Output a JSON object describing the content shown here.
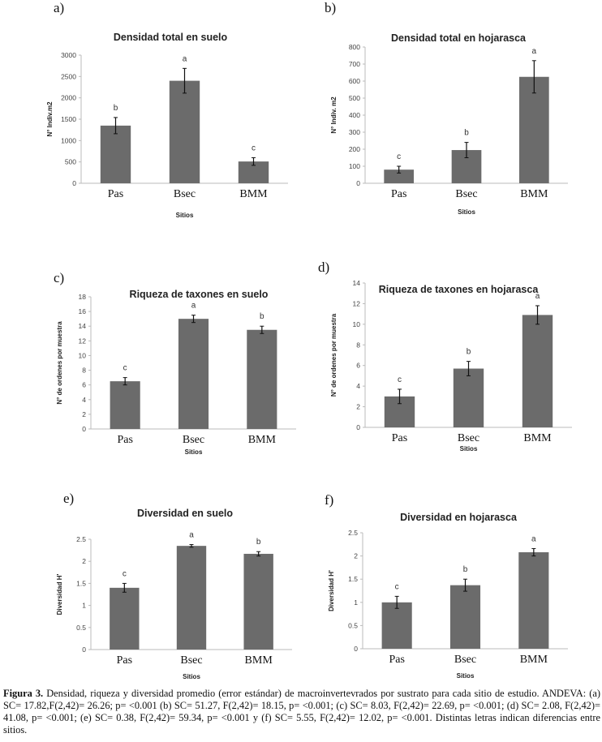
{
  "chart_data": [
    {
      "type": "bar",
      "panel": "a)",
      "title": "Densidad total en suelo",
      "xlabel": "Sitios",
      "ylabel": "N° Indiv.m2",
      "categories": [
        "Pas",
        "Bsec",
        "BMM"
      ],
      "values": [
        1350,
        2400,
        510
      ],
      "errors": [
        190,
        290,
        90
      ],
      "letters": [
        "b",
        "a",
        "c"
      ],
      "ylim": [
        0,
        3000
      ],
      "yticks": [
        0,
        500,
        1000,
        1500,
        2000,
        2500,
        3000
      ]
    },
    {
      "type": "bar",
      "panel": "b)",
      "title": "Densidad total en hojarasca",
      "xlabel": "Sitios",
      "ylabel": "N° Indiv. m2",
      "categories": [
        "Pas",
        "Bsec",
        "BMM"
      ],
      "values": [
        80,
        195,
        625
      ],
      "errors": [
        20,
        45,
        95
      ],
      "letters": [
        "c",
        "b",
        "a"
      ],
      "ylim": [
        0,
        800
      ],
      "yticks": [
        0,
        100,
        200,
        300,
        400,
        500,
        600,
        700,
        800
      ]
    },
    {
      "type": "bar",
      "panel": "c)",
      "title": "Riqueza de taxones en suelo",
      "xlabel": "Sitios",
      "ylabel": "N° de ordenes por muestra",
      "categories": [
        "Pas",
        "Bsec",
        "BMM"
      ],
      "values": [
        6.5,
        15.0,
        13.5
      ],
      "errors": [
        0.5,
        0.5,
        0.5
      ],
      "letters": [
        "c",
        "a",
        "b"
      ],
      "ylim": [
        0,
        18
      ],
      "yticks": [
        0,
        2,
        4,
        6,
        8,
        10,
        12,
        14,
        16,
        18
      ]
    },
    {
      "type": "bar",
      "panel": "d)",
      "title": "Riqueza de taxones en hojarasca",
      "xlabel": "Sitios",
      "ylabel": "N° de ordenes por muestra",
      "categories": [
        "Pas",
        "Bsec",
        "BMM"
      ],
      "values": [
        3.0,
        5.7,
        10.9
      ],
      "errors": [
        0.7,
        0.7,
        0.9
      ],
      "letters": [
        "c",
        "b",
        "a"
      ],
      "ylim": [
        0,
        14
      ],
      "yticks": [
        0,
        2,
        4,
        6,
        8,
        10,
        12,
        14
      ]
    },
    {
      "type": "bar",
      "panel": "e)",
      "title": "Diversidad en suelo",
      "xlabel": "Sitios",
      "ylabel": "Diversidad H'",
      "categories": [
        "Pas",
        "Bsec",
        "BMM"
      ],
      "values": [
        1.4,
        2.35,
        2.17
      ],
      "errors": [
        0.1,
        0.03,
        0.05
      ],
      "letters": [
        "c",
        "a",
        "b"
      ],
      "ylim": [
        0,
        2.5
      ],
      "yticks": [
        0,
        0.5,
        1,
        1.5,
        2,
        2.5
      ],
      "ytick_labels": [
        "0",
        "0.5",
        "1",
        "1.5",
        "2",
        "2.5"
      ]
    },
    {
      "type": "bar",
      "panel": "f)",
      "title": "Diversidad en hojarasca",
      "xlabel": "Sitios",
      "ylabel": "Diversidad H'",
      "categories": [
        "Pas",
        "Bsec",
        "BMM"
      ],
      "values": [
        1.0,
        1.37,
        2.08
      ],
      "errors": [
        0.13,
        0.13,
        0.08
      ],
      "letters": [
        "c",
        "b",
        "a"
      ],
      "ylim": [
        0,
        2.5
      ],
      "yticks": [
        0,
        0.5,
        1,
        1.5,
        2,
        2.5
      ],
      "ytick_labels": [
        "0",
        "0.5",
        "1",
        "1.5",
        "2",
        "2.5"
      ]
    }
  ],
  "colors": {
    "bar": "#6b6b6b",
    "axis": "#bbbbbb",
    "text": "#222222"
  },
  "caption": {
    "label": "Figura 3.",
    "text": " Densidad, riqueza y diversidad  promedio (error estándar) de macroinvertevrados por sustrato para cada sitio de estudio. ANDEVA: (a) SC= 17.82,F(2,42)= 26.26; p= <0.001 (b) SC= 51.27, F(2,42)= 18.15,  p= <0.001; (c) SC= 8.03, F(2,42)= 22.69,  p= <0.001; (d) SC= 2.08, F(2,42)= 41.08, p= <0.001; (e) SC= 0.38, F(2,42)= 59.34,  p= <0.001 y (f) SC= 5.55, F(2,42)= 12.02, p= <0.001. Distintas letras indican diferencias entre sitios."
  }
}
